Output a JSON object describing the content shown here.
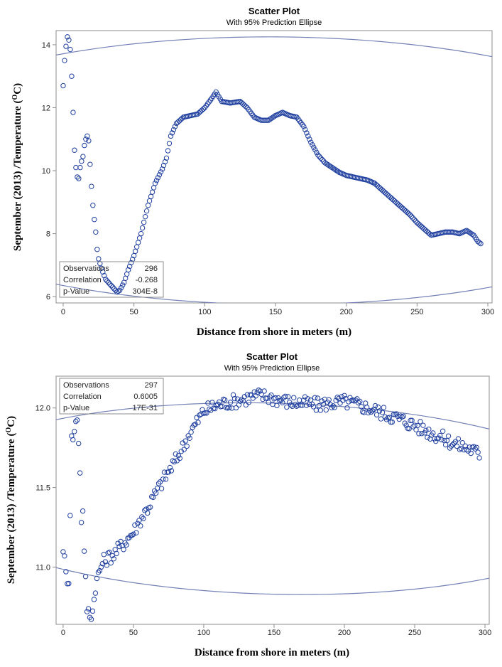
{
  "colors": {
    "marker": "#1f3f9f",
    "ellipse": "#7381b6",
    "frame": "#8c8c8c"
  },
  "chart_data": [
    {
      "type": "scatter",
      "title": "Scatter Plot",
      "subtitle": "With 95% Prediction Ellipse",
      "xlabel": "Distance from shore in meters (m)",
      "ylabel": "September (2013) /Temperature (°C)",
      "ylabel_parts": {
        "pre": "September (2013) /Temperature (",
        "sup": "O",
        "post": "C)"
      },
      "xlim": [
        -5,
        303
      ],
      "ylim": [
        5.8,
        14.45
      ],
      "xticks": [
        0,
        50,
        100,
        150,
        200,
        250,
        300
      ],
      "yticks": [
        6,
        8,
        10,
        12,
        14
      ],
      "stats": [
        {
          "label": "Observations",
          "value": "296"
        },
        {
          "label": "Correlation",
          "value": "-0.268"
        },
        {
          "label": "p-Value",
          "value": "304E-8"
        }
      ],
      "n": 296,
      "x_step": 1,
      "anchors": [
        [
          0,
          12.7
        ],
        [
          1,
          13.5
        ],
        [
          2,
          13.95
        ],
        [
          3,
          14.25
        ],
        [
          4,
          14.15
        ],
        [
          5,
          13.85
        ],
        [
          6,
          13.0
        ],
        [
          7,
          11.85
        ],
        [
          8,
          10.65
        ],
        [
          9,
          10.1
        ],
        [
          10,
          9.8
        ],
        [
          11,
          9.75
        ],
        [
          12,
          10.1
        ],
        [
          13,
          10.3
        ],
        [
          14,
          10.45
        ],
        [
          15,
          10.8
        ],
        [
          16,
          11.0
        ],
        [
          17,
          11.1
        ],
        [
          18,
          10.95
        ],
        [
          19,
          10.2
        ],
        [
          20,
          9.5
        ],
        [
          21,
          8.9
        ],
        [
          22,
          8.45
        ],
        [
          23,
          8.05
        ],
        [
          24,
          7.5
        ],
        [
          25,
          7.2
        ],
        [
          27,
          6.9
        ],
        [
          30,
          6.55
        ],
        [
          35,
          6.3
        ],
        [
          38,
          6.15
        ],
        [
          40,
          6.2
        ],
        [
          43,
          6.45
        ],
        [
          46,
          6.85
        ],
        [
          50,
          7.3
        ],
        [
          55,
          8.0
        ],
        [
          60,
          8.9
        ],
        [
          65,
          9.6
        ],
        [
          70,
          10.05
        ],
        [
          73,
          10.4
        ],
        [
          76,
          11.1
        ],
        [
          80,
          11.5
        ],
        [
          85,
          11.7
        ],
        [
          90,
          11.75
        ],
        [
          95,
          11.8
        ],
        [
          100,
          12.0
        ],
        [
          105,
          12.3
        ],
        [
          108,
          12.5
        ],
        [
          112,
          12.2
        ],
        [
          118,
          12.15
        ],
        [
          125,
          12.2
        ],
        [
          130,
          12.0
        ],
        [
          135,
          11.7
        ],
        [
          140,
          11.6
        ],
        [
          145,
          11.6
        ],
        [
          150,
          11.75
        ],
        [
          155,
          11.85
        ],
        [
          160,
          11.75
        ],
        [
          165,
          11.7
        ],
        [
          170,
          11.4
        ],
        [
          175,
          10.9
        ],
        [
          180,
          10.5
        ],
        [
          185,
          10.25
        ],
        [
          190,
          10.1
        ],
        [
          195,
          9.95
        ],
        [
          200,
          9.85
        ],
        [
          205,
          9.8
        ],
        [
          210,
          9.75
        ],
        [
          215,
          9.7
        ],
        [
          220,
          9.6
        ],
        [
          225,
          9.4
        ],
        [
          230,
          9.2
        ],
        [
          235,
          9.0
        ],
        [
          240,
          8.8
        ],
        [
          245,
          8.6
        ],
        [
          250,
          8.35
        ],
        [
          255,
          8.15
        ],
        [
          260,
          7.95
        ],
        [
          265,
          8.0
        ],
        [
          270,
          8.05
        ],
        [
          275,
          8.05
        ],
        [
          280,
          8.0
        ],
        [
          285,
          8.1
        ],
        [
          290,
          7.95
        ],
        [
          293,
          7.75
        ],
        [
          296,
          7.65
        ]
      ],
      "ellipse": {
        "cx": 150,
        "cy": 10.0,
        "a": 300,
        "b": 4.25,
        "rot_deg": -0.6
      }
    },
    {
      "type": "scatter",
      "title": "Scatter Plot",
      "subtitle": "With 95% Prediction Ellipse",
      "xlabel": "Distance from shore in meters (m)",
      "ylabel": "September (2013) /Temperature (°C)",
      "ylabel_parts": {
        "pre": "September (2013) /Temperature (",
        "sup": "O",
        "post": "C)"
      },
      "xlim": [
        -5,
        303
      ],
      "ylim": [
        10.64,
        12.2
      ],
      "xticks": [
        0,
        50,
        100,
        150,
        200,
        250,
        300
      ],
      "yticks": [
        11.0,
        11.5,
        12.0
      ],
      "ytick_labels": [
        "11.0",
        "11.5",
        "12.0"
      ],
      "stats": [
        {
          "label": "Observations",
          "value": "297"
        },
        {
          "label": "Correlation",
          "value": "0.6005"
        },
        {
          "label": "p-Value",
          "value": "17E-31"
        }
      ],
      "n": 297,
      "x_step": 1,
      "anchors": [
        [
          0,
          11.13
        ],
        [
          2,
          10.95
        ],
        [
          4,
          10.92
        ],
        [
          6,
          11.8
        ],
        [
          8,
          11.85
        ],
        [
          10,
          11.95
        ],
        [
          12,
          11.62
        ],
        [
          13,
          11.27
        ],
        [
          14,
          11.38
        ],
        [
          15,
          11.08
        ],
        [
          17,
          10.74
        ],
        [
          19,
          10.7
        ],
        [
          21,
          10.72
        ],
        [
          23,
          10.88
        ],
        [
          25,
          10.95
        ],
        [
          28,
          11.03
        ],
        [
          32,
          11.06
        ],
        [
          36,
          11.08
        ],
        [
          40,
          11.12
        ],
        [
          45,
          11.17
        ],
        [
          50,
          11.22
        ],
        [
          55,
          11.3
        ],
        [
          60,
          11.37
        ],
        [
          65,
          11.45
        ],
        [
          70,
          11.53
        ],
        [
          75,
          11.6
        ],
        [
          80,
          11.67
        ],
        [
          85,
          11.75
        ],
        [
          90,
          11.84
        ],
        [
          95,
          11.91
        ],
        [
          100,
          11.98
        ],
        [
          110,
          12.02
        ],
        [
          120,
          12.04
        ],
        [
          130,
          12.06
        ],
        [
          140,
          12.08
        ],
        [
          150,
          12.06
        ],
        [
          160,
          12.04
        ],
        [
          170,
          12.03
        ],
        [
          180,
          12.02
        ],
        [
          190,
          12.03
        ],
        [
          200,
          12.04
        ],
        [
          210,
          12.02
        ],
        [
          220,
          11.99
        ],
        [
          230,
          11.96
        ],
        [
          240,
          11.93
        ],
        [
          250,
          11.89
        ],
        [
          260,
          11.85
        ],
        [
          270,
          11.81
        ],
        [
          280,
          11.77
        ],
        [
          290,
          11.74
        ],
        [
          296,
          11.71
        ]
      ],
      "noise": 0.045,
      "ellipse": {
        "cx": 150,
        "cy": 11.43,
        "a": 245,
        "b": 0.6,
        "rot_deg": -3.0
      }
    }
  ]
}
